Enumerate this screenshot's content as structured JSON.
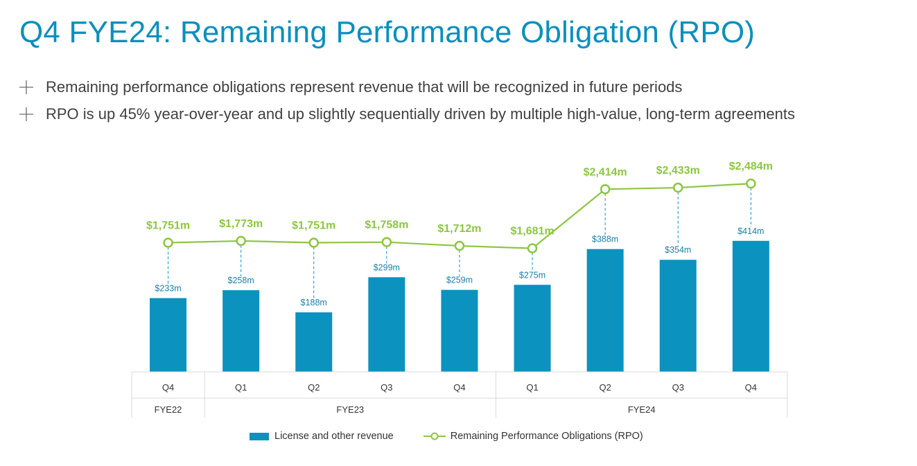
{
  "title": "Q4 FYE24: Remaining Performance Obligation (RPO)",
  "bullets": [
    "Remaining performance obligations represent revenue that will be recognized in future periods",
    "RPO is up 45% year-over-year and up slightly sequentially driven by multiple high-value, long-term agreements"
  ],
  "colors": {
    "title": "#0b8fbd",
    "bar": "#0b92bf",
    "line": "#8cc63f",
    "rpo_label": "#8cc63f",
    "bar_label": "#1a7fa8"
  },
  "chart_data": {
    "type": "bar",
    "categories": [
      "Q4",
      "Q1",
      "Q2",
      "Q3",
      "Q4",
      "Q1",
      "Q2",
      "Q3",
      "Q4"
    ],
    "groups": [
      {
        "label": "FYE22",
        "span": 1
      },
      {
        "label": "FYE23",
        "span": 4
      },
      {
        "label": "FYE24",
        "span": 4
      }
    ],
    "series": [
      {
        "name": "License and other revenue",
        "type": "bar",
        "values": [
          233,
          258,
          188,
          299,
          259,
          275,
          388,
          354,
          414
        ],
        "labels": [
          "$233m",
          "$258m",
          "$188m",
          "$299m",
          "$259m",
          "$275m",
          "$388m",
          "$354m",
          "$414m"
        ]
      },
      {
        "name": "Remaining Performance Obligations (RPO)",
        "type": "line",
        "values": [
          1751,
          1773,
          1751,
          1758,
          1712,
          1681,
          2414,
          2433,
          2484
        ],
        "labels": [
          "$1,751m",
          "$1,773m",
          "$1,751m",
          "$1,758m",
          "$1,712m",
          "$1,681m",
          "$2,414m",
          "$2,433m",
          "$2,484m"
        ]
      }
    ],
    "legend_position": "bottom"
  }
}
